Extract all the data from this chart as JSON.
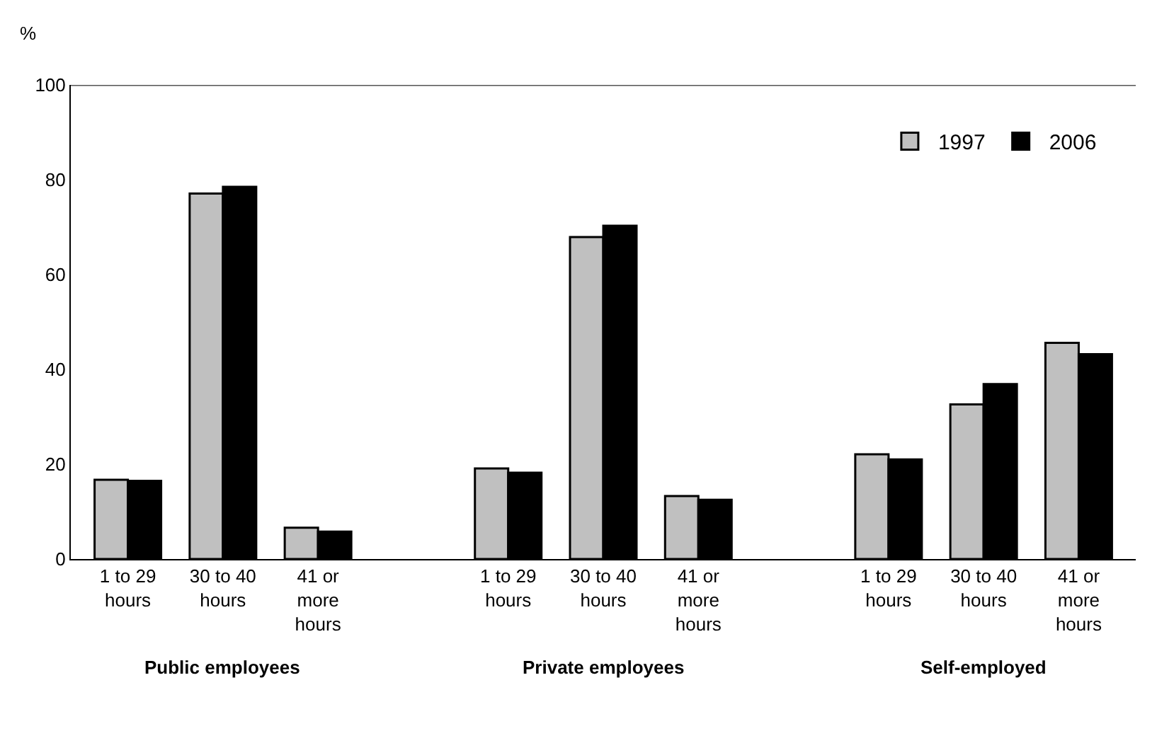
{
  "chart_data": {
    "type": "bar",
    "ylabel": "%",
    "categories": [
      "1 to 29\nhours",
      "30 to 40\nhours",
      "41 or\nmore\nhours",
      null,
      "1 to 29\nhours",
      "30 to 40\nhours",
      "41 or\nmore\nhours",
      null,
      "1 to 29\nhours",
      "30 to 40\nhours",
      "41 or\nmore\nhours"
    ],
    "series": [
      {
        "name": "1997",
        "color": "#c0c0c0",
        "values": [
          16.7,
          77.1,
          6.6,
          null,
          19.1,
          67.9,
          13.3,
          null,
          22.1,
          32.6,
          45.6
        ]
      },
      {
        "name": "2006",
        "color": "#000000",
        "values": [
          16.5,
          78.5,
          5.8,
          null,
          18.2,
          70.3,
          12.5,
          null,
          21.0,
          36.9,
          43.2
        ]
      }
    ],
    "annotations": [
      "Public employees",
      "Private employees",
      "Self-employed"
    ],
    "ylim": [
      0,
      100
    ],
    "yticks": [
      0,
      20,
      40,
      60,
      80,
      100
    ],
    "legend": "top right"
  }
}
